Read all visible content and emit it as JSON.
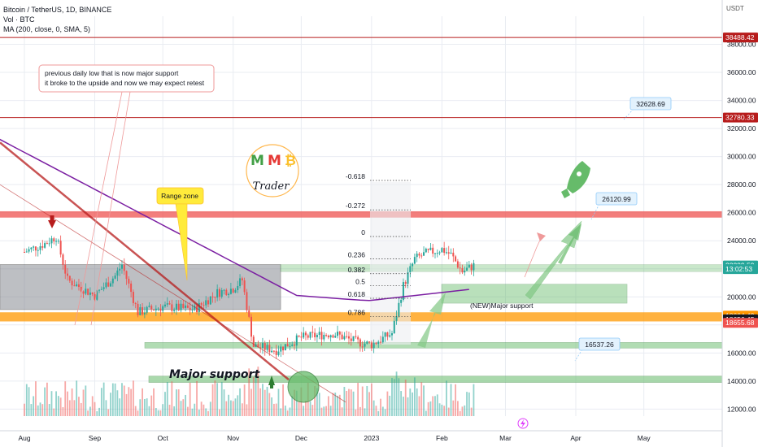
{
  "header": {
    "symbol_line": "Bitcoin / TetherUS, 1D, BINANCE",
    "volume_line": "Vol · BTC",
    "ma_line": "MA (200, close, 0, SMA, 5)",
    "currency": "USDT"
  },
  "colors": {
    "up": "#26a69a",
    "down": "#ef5350",
    "ma": "#7b1fa2",
    "resistance": "#b71c1c",
    "orange_band": "#ff9800",
    "green_zone": "#66bb6a",
    "grey_zone": "#9e9e9e",
    "grid": "#e9ecf2"
  },
  "chart_data": {
    "type": "candlestick",
    "x_ticks": [
      "Aug",
      "Sep",
      "Oct",
      "Nov",
      "Dec",
      "2023",
      "Feb",
      "Mar",
      "Apr",
      "May"
    ],
    "y_ticks": [
      12000,
      14000,
      16000,
      18000,
      20000,
      22000,
      24000,
      26000,
      28000,
      30000,
      32000,
      34000,
      36000,
      38000
    ],
    "ylim": [
      11500,
      40000
    ],
    "price_path": [
      [
        "Aug",
        23200
      ],
      [
        "Aug 10",
        23800
      ],
      [
        "Aug 15",
        24300
      ],
      [
        "Aug 20",
        21200
      ],
      [
        "Sep",
        20100
      ],
      [
        "Sep 10",
        21500
      ],
      [
        "Sep 13",
        22300
      ],
      [
        "Sep 20",
        18900
      ],
      [
        "Oct",
        19300
      ],
      [
        "Oct 15",
        19100
      ],
      [
        "Oct 25",
        20300
      ],
      [
        "Nov",
        20600
      ],
      [
        "Nov 5",
        21200
      ],
      [
        "Nov 10",
        16500
      ],
      [
        "Nov 20",
        16200
      ],
      [
        "Dec",
        17100
      ],
      [
        "Dec 15",
        17400
      ],
      [
        "Dec 25",
        16800
      ],
      [
        "2023",
        16600
      ],
      [
        "Jan 10",
        17400
      ],
      [
        "Jan 15",
        20800
      ],
      [
        "Jan 20",
        22700
      ],
      [
        "Jan 25",
        23100
      ],
      [
        "Feb",
        23400
      ],
      [
        "Feb 5",
        23000
      ],
      [
        "Feb 10",
        21800
      ],
      [
        "Feb 15",
        22239.59
      ]
    ],
    "price_levels": [
      {
        "label": "38488.42",
        "value": 38488.42,
        "color": "#b71c1c"
      },
      {
        "label": "32780.33",
        "value": 32780.33,
        "color": "#b71c1c"
      },
      {
        "label": "22239.59",
        "value": 22239.59,
        "color": "#26a69a"
      },
      {
        "label": "13:02:53",
        "value": 21980,
        "color": "#26a69a"
      },
      {
        "label": "18664.43",
        "value": 18664.43,
        "color": "#ff9800"
      },
      {
        "label": "18656.45",
        "value": 18400,
        "color": "#131722"
      },
      {
        "label": "18655.68",
        "value": 18150,
        "color": "#ef5350"
      }
    ],
    "targets": [
      {
        "label": "32628.69",
        "value": 32628.69
      },
      {
        "label": "26120.99",
        "value": 26120.99
      },
      {
        "label": "16537.26",
        "value": 16537.26
      }
    ],
    "fib_levels": [
      {
        "label": "-0.618",
        "value": 28300
      },
      {
        "label": "-0.272",
        "value": 26200
      },
      {
        "label": "0",
        "value": 24300
      },
      {
        "label": "0.236",
        "value": 22700
      },
      {
        "label": "0.382",
        "value": 21650
      },
      {
        "label": "0.5",
        "value": 20800
      },
      {
        "label": "0.618",
        "value": 19900
      },
      {
        "label": "0.786",
        "value": 18600
      }
    ],
    "annotations": {
      "callout": "previous daily low that is now major support it broke to the upside and now we may expect retest",
      "callout_line1": "previous daily low that is now major support",
      "callout_line2": "it broke to the upside and now we may expect retest",
      "range_zone": "Range zone",
      "major_support": "Major support",
      "new_major_support": "(NEW)Major support",
      "logo_letters": [
        "M",
        "M",
        "₿"
      ],
      "logo_word": "Trader"
    }
  }
}
